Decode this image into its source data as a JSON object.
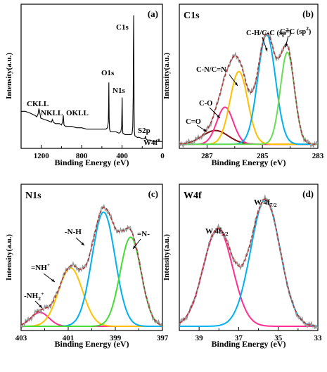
{
  "chart_data": [
    {
      "panel": "(a)",
      "type": "line",
      "xlabel": "Binding Energy (eV)",
      "ylabel": "Intensity(a.u.)",
      "xlim": [
        1400,
        0
      ],
      "x_ticks": [
        "1200",
        "800",
        "400",
        "0"
      ],
      "x_tick_values": [
        1200,
        800,
        400,
        0
      ],
      "grid": false,
      "annotations": [
        {
          "text": "C1s",
          "x": 285,
          "y": 0.92
        },
        {
          "text": "O1s",
          "x": 531,
          "y": 0.5
        },
        {
          "text": "N1s",
          "x": 399,
          "y": 0.38
        },
        {
          "text": "CKLL",
          "x": 1225,
          "y": 0.26
        },
        {
          "text": "NKLL",
          "x": 1090,
          "y": 0.21
        },
        {
          "text": "OKLL",
          "x": 985,
          "y": 0.21
        },
        {
          "text": "S2p",
          "x": 168,
          "y": 0.08
        },
        {
          "text": "W4f",
          "x": 33,
          "y": 0.03
        }
      ],
      "series": [
        {
          "x": [
            1400,
            1360,
            1320,
            1290,
            1262,
            1245,
            1232,
            1223,
            1215,
            1205,
            1170,
            1130,
            1100,
            1090,
            1080,
            1060,
            1020,
            1000,
            990,
            982,
            975,
            960,
            900,
            850,
            800,
            750,
            700,
            650,
            600,
            560,
            545,
            536,
            533,
            531,
            528,
            524,
            515,
            490,
            460,
            430,
            412,
            404,
            401,
            399,
            396,
            392,
            370,
            340,
            310,
            300,
            294,
            290,
            287,
            285,
            283,
            281,
            278,
            272,
            250,
            230,
            200,
            175,
            168,
            163,
            150,
            120,
            90,
            60,
            38,
            35,
            32,
            20,
            0
          ],
          "values": [
            0.25,
            0.25,
            0.24,
            0.23,
            0.22,
            0.21,
            0.23,
            0.27,
            0.24,
            0.2,
            0.19,
            0.18,
            0.17,
            0.19,
            0.17,
            0.16,
            0.16,
            0.15,
            0.17,
            0.22,
            0.15,
            0.14,
            0.14,
            0.13,
            0.13,
            0.12,
            0.12,
            0.12,
            0.12,
            0.12,
            0.13,
            0.17,
            0.3,
            0.46,
            0.2,
            0.12,
            0.1,
            0.1,
            0.1,
            0.09,
            0.1,
            0.14,
            0.26,
            0.35,
            0.16,
            0.09,
            0.08,
            0.08,
            0.08,
            0.09,
            0.14,
            0.35,
            0.75,
            0.95,
            0.65,
            0.25,
            0.1,
            0.07,
            0.06,
            0.06,
            0.05,
            0.05,
            0.07,
            0.05,
            0.04,
            0.04,
            0.03,
            0.03,
            0.03,
            0.05,
            0.03,
            0.03,
            0.03
          ]
        }
      ]
    },
    {
      "panel": "(b)",
      "label": "C1s",
      "type": "line",
      "xlabel": "Binding Energy (eV)",
      "ylabel": "Intensity(a.u.)",
      "xlim": [
        288,
        283
      ],
      "ylim": [
        0,
        1
      ],
      "x_ticks": [
        "287",
        "285",
        "283"
      ],
      "x_tick_values": [
        287,
        285,
        283
      ],
      "grid": false,
      "series": [
        {
          "name": "C=O",
          "shape": "gaussian",
          "center": 286.7,
          "amplitude": 0.1,
          "fwhm": 1.1,
          "color": "#7b1010"
        },
        {
          "name": "C-O",
          "shape": "gaussian",
          "center": 286.35,
          "amplitude": 0.27,
          "fwhm": 0.7,
          "color": "#ff2f92"
        },
        {
          "name": "C-N/C=N",
          "shape": "gaussian",
          "center": 285.85,
          "amplitude": 0.53,
          "fwhm": 0.75,
          "color": "#ffc000"
        },
        {
          "name": "C-H/C-C (sp3)",
          "shape": "gaussian",
          "center": 284.85,
          "amplitude": 0.8,
          "fwhm": 0.75,
          "color": "#00b0f0"
        },
        {
          "name": "C=C (sp2)",
          "shape": "gaussian",
          "center": 284.1,
          "amplitude": 0.67,
          "fwhm": 0.6,
          "color": "#66dd55"
        },
        {
          "name": "fit",
          "shape": "sum",
          "color": "#b03030",
          "dashed": true
        },
        {
          "name": "raw",
          "shape": "sum_noisy",
          "color": "#999999"
        }
      ],
      "annotations": [
        {
          "text": "C-H/C-C (sp",
          "sup": "3",
          "close": ")"
        },
        {
          "text": "C=C (sp",
          "sup": "2",
          "close": ")"
        },
        {
          "text": "C-N/C=N"
        },
        {
          "text": "C-O"
        },
        {
          "text": "C=O"
        }
      ]
    },
    {
      "panel": "(c)",
      "label": "N1s",
      "type": "line",
      "xlabel": "Binding Energy (eV)",
      "ylabel": "Intensity(a.u.)",
      "xlim": [
        403,
        397
      ],
      "ylim": [
        0,
        1
      ],
      "x_ticks": [
        "403",
        "401",
        "399",
        "397"
      ],
      "x_tick_values": [
        403,
        401,
        399,
        397
      ],
      "grid": false,
      "series": [
        {
          "name": "-NH2+",
          "shape": "gaussian",
          "center": 402.2,
          "amplitude": 0.1,
          "fwhm": 0.9,
          "color": "#ff2f92"
        },
        {
          "name": "=NH+",
          "shape": "gaussian",
          "center": 400.9,
          "amplitude": 0.42,
          "fwhm": 1.2,
          "color": "#ffc000"
        },
        {
          "name": "-N-H",
          "shape": "gaussian",
          "center": 399.5,
          "amplitude": 0.82,
          "fwhm": 1.15,
          "color": "#00b0f0"
        },
        {
          "name": "=N-",
          "shape": "gaussian",
          "center": 398.35,
          "amplitude": 0.64,
          "fwhm": 1.05,
          "color": "#44dd33"
        },
        {
          "name": "fit",
          "shape": "sum",
          "color": "#b03030",
          "dashed": true
        },
        {
          "name": "raw",
          "shape": "sum_noisy",
          "color": "#999999"
        }
      ],
      "annotations": [
        {
          "text": "-N-H"
        },
        {
          "text": "=N-"
        },
        {
          "text": "=NH",
          "sup": "+"
        },
        {
          "text": "-NH",
          "sub": "2",
          "sup": "+"
        }
      ]
    },
    {
      "panel": "(d)",
      "label": "W4f",
      "type": "line",
      "xlabel": "Binding Energy (eV)",
      "ylabel": "Intensity(a.u.)",
      "xlim": [
        40,
        33
      ],
      "ylim": [
        0,
        1
      ],
      "x_ticks": [
        "39",
        "37",
        "35",
        "33"
      ],
      "x_tick_values": [
        39,
        37,
        35,
        33
      ],
      "grid": false,
      "series": [
        {
          "name": "W 4f 5/2",
          "shape": "gaussian",
          "center": 38.05,
          "amplitude": 0.7,
          "fwhm": 1.75,
          "color": "#ff2f92"
        },
        {
          "name": "W 4f 7/2",
          "shape": "gaussian",
          "center": 35.65,
          "amplitude": 0.91,
          "fwhm": 1.75,
          "color": "#00b0f0"
        },
        {
          "name": "fit",
          "shape": "sum",
          "color": "#b03030",
          "dashed": true
        },
        {
          "name": "raw",
          "shape": "sum_noisy",
          "color": "#999999"
        }
      ],
      "annotations": [
        {
          "text": "W 4f",
          "sub": "5/2"
        },
        {
          "text": "W 4f",
          "sub": "7/2"
        }
      ]
    }
  ]
}
